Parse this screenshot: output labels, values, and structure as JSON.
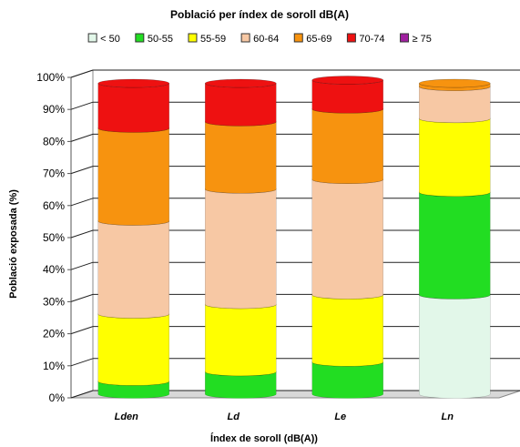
{
  "chart_data": {
    "type": "bar",
    "stacked": true,
    "title": "Població per índex de soroll dB(A)",
    "xlabel": "Índex de soroll (dB(A))",
    "ylabel": "Població exposada (%)",
    "ylim": [
      0,
      100
    ],
    "yticks": [
      "0%",
      "10%",
      "20%",
      "30%",
      "40%",
      "50%",
      "60%",
      "70%",
      "80%",
      "90%",
      "100%"
    ],
    "grid": true,
    "legend_position": "top",
    "categories": [
      "Lden",
      "Ld",
      "Le",
      "Ln"
    ],
    "series": [
      {
        "name": "< 50",
        "color": "#e2f7e9",
        "values": [
          0,
          0,
          0,
          31
        ]
      },
      {
        "name": "50-55",
        "color": "#22dd22",
        "values": [
          4,
          7,
          10,
          32
        ]
      },
      {
        "name": "55-59",
        "color": "#ffff00",
        "values": [
          21,
          21,
          21,
          23
        ]
      },
      {
        "name": "60-64",
        "color": "#f7c8a4",
        "values": [
          29,
          36,
          36,
          10
        ]
      },
      {
        "name": "65-69",
        "color": "#f7930f",
        "values": [
          29,
          21,
          22,
          1
        ]
      },
      {
        "name": "70-74",
        "color": "#ee1111",
        "values": [
          14,
          12,
          9,
          0
        ]
      },
      {
        "name": "≥ 75",
        "color": "#a020a0",
        "values": [
          0,
          0,
          0,
          0
        ]
      }
    ]
  }
}
